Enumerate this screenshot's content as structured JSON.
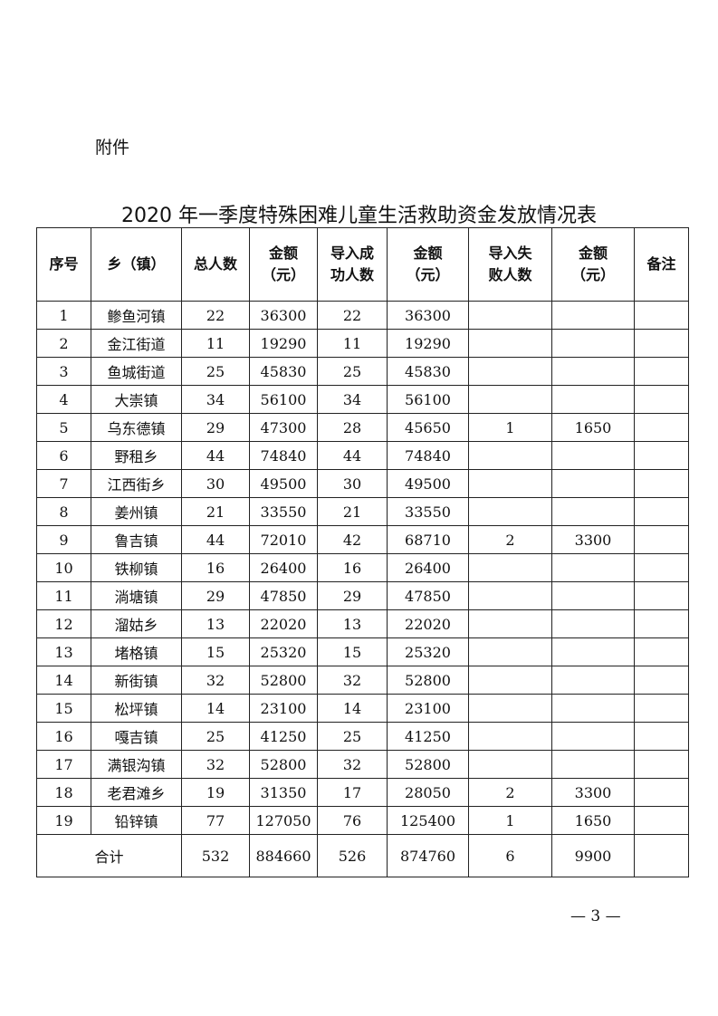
{
  "attachment_label": "附件",
  "title": "2020 年一季度特殊困难儿童生活救助资金发放情况表",
  "headers": [
    "序号",
    "乡（镇）",
    "总人数",
    "金额\n（元）",
    "导入成\n功人数",
    "金额\n（元）",
    "导入失\n败人数",
    "金额\n（元）",
    "备注"
  ],
  "rows": [
    [
      "1",
      "鲹鱼河镇",
      "22",
      "36300",
      "22",
      "36300",
      "",
      "",
      ""
    ],
    [
      "2",
      "金江街道",
      "11",
      "19290",
      "11",
      "19290",
      "",
      "",
      ""
    ],
    [
      "3",
      "鱼城街道",
      "25",
      "45830",
      "25",
      "45830",
      "",
      "",
      ""
    ],
    [
      "4",
      "大崇镇",
      "34",
      "56100",
      "34",
      "56100",
      "",
      "",
      ""
    ],
    [
      "5",
      "乌东德镇",
      "29",
      "47300",
      "28",
      "45650",
      "1",
      "1650",
      ""
    ],
    [
      "6",
      "野租乡",
      "44",
      "74840",
      "44",
      "74840",
      "",
      "",
      ""
    ],
    [
      "7",
      "江西街乡",
      "30",
      "49500",
      "30",
      "49500",
      "",
      "",
      ""
    ],
    [
      "8",
      "姜州镇",
      "21",
      "33550",
      "21",
      "33550",
      "",
      "",
      ""
    ],
    [
      "9",
      "鲁吉镇",
      "44",
      "72010",
      "42",
      "68710",
      "2",
      "3300",
      ""
    ],
    [
      "10",
      "铁柳镇",
      "16",
      "26400",
      "16",
      "26400",
      "",
      "",
      ""
    ],
    [
      "11",
      "淌塘镇",
      "29",
      "47850",
      "29",
      "47850",
      "",
      "",
      ""
    ],
    [
      "12",
      "溜姑乡",
      "13",
      "22020",
      "13",
      "22020",
      "",
      "",
      ""
    ],
    [
      "13",
      "堵格镇",
      "15",
      "25320",
      "15",
      "25320",
      "",
      "",
      ""
    ],
    [
      "14",
      "新街镇",
      "32",
      "52800",
      "32",
      "52800",
      "",
      "",
      ""
    ],
    [
      "15",
      "松坪镇",
      "14",
      "23100",
      "14",
      "23100",
      "",
      "",
      ""
    ],
    [
      "16",
      "嘎吉镇",
      "25",
      "41250",
      "25",
      "41250",
      "",
      "",
      ""
    ],
    [
      "17",
      "满银沟镇",
      "32",
      "52800",
      "32",
      "52800",
      "",
      "",
      ""
    ],
    [
      "18",
      "老君滩乡",
      "19",
      "31350",
      "17",
      "28050",
      "2",
      "3300",
      ""
    ],
    [
      "19",
      "铅锌镇",
      "77",
      "127050",
      "76",
      "125400",
      "1",
      "1650",
      ""
    ]
  ],
  "total": [
    "合计",
    "532",
    "884660",
    "526",
    "874760",
    "6",
    "9900",
    ""
  ],
  "page_number": "— 3 —"
}
